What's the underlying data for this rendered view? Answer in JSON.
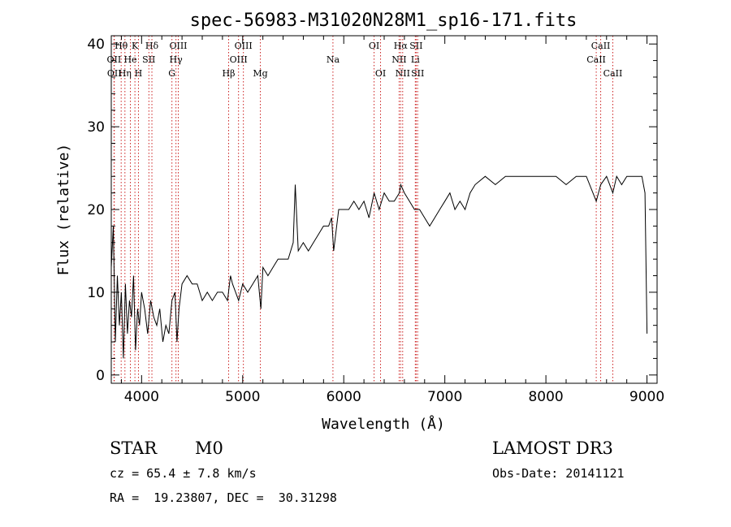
{
  "chart_data": {
    "type": "line",
    "title": "spec-56983-M31020N28M1_sp16-171.fits",
    "xlabel": "Wavelength (Å)",
    "ylabel": "Flux (relative)",
    "xlim": [
      3700,
      9100
    ],
    "ylim": [
      -1,
      41
    ],
    "xticks": [
      4000,
      5000,
      6000,
      7000,
      8000,
      9000
    ],
    "yticks": [
      0,
      10,
      20,
      30,
      40
    ],
    "grid": false,
    "line_color": "#000000",
    "marker_color": "#cc2222",
    "series": [
      {
        "x": [
          3700,
          3720,
          3740,
          3760,
          3780,
          3800,
          3820,
          3840,
          3860,
          3880,
          3900,
          3920,
          3940,
          3960,
          3980,
          4000,
          4030,
          4060,
          4090,
          4120,
          4150,
          4180,
          4210,
          4240,
          4270,
          4300,
          4330,
          4350,
          4370,
          4400,
          4450,
          4500,
          4550,
          4600,
          4650,
          4700,
          4750,
          4800,
          4850,
          4880,
          4900,
          4930,
          4960,
          5000,
          5050,
          5100,
          5150,
          5180,
          5200,
          5250,
          5300,
          5350,
          5400,
          5450,
          5500,
          5520,
          5550,
          5600,
          5650,
          5700,
          5750,
          5800,
          5850,
          5880,
          5900,
          5950,
          6000,
          6050,
          6100,
          6150,
          6200,
          6250,
          6300,
          6350,
          6400,
          6450,
          6500,
          6550,
          6563,
          6600,
          6650,
          6700,
          6750,
          6800,
          6850,
          6900,
          6950,
          7000,
          7050,
          7100,
          7150,
          7200,
          7250,
          7300,
          7400,
          7500,
          7600,
          7700,
          7800,
          7900,
          8000,
          8100,
          8200,
          8300,
          8400,
          8498,
          8542,
          8600,
          8662,
          8700,
          8750,
          8800,
          8850,
          8900,
          8950,
          8980,
          9000
        ],
        "y": [
          13,
          18,
          4,
          12,
          6,
          10,
          2,
          11,
          5,
          9,
          7,
          12,
          3,
          8,
          6,
          10,
          8,
          5,
          9,
          7,
          6,
          8,
          4,
          6,
          5,
          9,
          10,
          4,
          8,
          11,
          12,
          11,
          11,
          9,
          10,
          9,
          10,
          10,
          9,
          12,
          11,
          10,
          9,
          11,
          10,
          11,
          12,
          8,
          13,
          12,
          13,
          14,
          14,
          14,
          16,
          23,
          15,
          16,
          15,
          16,
          17,
          18,
          18,
          19,
          15,
          20,
          20,
          20,
          21,
          20,
          21,
          19,
          22,
          20,
          22,
          21,
          21,
          22,
          23,
          22,
          21,
          20,
          20,
          19,
          18,
          19,
          20,
          21,
          22,
          20,
          21,
          20,
          22,
          23,
          24,
          23,
          24,
          24,
          24,
          24,
          24,
          24,
          23,
          24,
          24,
          21,
          23,
          24,
          22,
          24,
          23,
          24,
          24,
          24,
          24,
          22,
          5
        ]
      }
    ],
    "line_markers": [
      {
        "label": "Hθ",
        "x": 3798,
        "row": 1
      },
      {
        "label": "OII",
        "x": 3727,
        "row": 2
      },
      {
        "label": "OII",
        "x": 3730,
        "row": 3
      },
      {
        "label": "K",
        "x": 3934,
        "row": 1
      },
      {
        "label": "He",
        "x": 3889,
        "row": 2
      },
      {
        "label": "Hη",
        "x": 3835,
        "row": 3
      },
      {
        "label": "H",
        "x": 3969,
        "row": 3
      },
      {
        "label": "Hδ",
        "x": 4102,
        "row": 1
      },
      {
        "label": "SII",
        "x": 4072,
        "row": 2
      },
      {
        "label": "OIII",
        "x": 4363,
        "row": 1
      },
      {
        "label": "Hγ",
        "x": 4340,
        "row": 2
      },
      {
        "label": "G",
        "x": 4300,
        "row": 3
      },
      {
        "label": "OIII",
        "x": 5007,
        "row": 1
      },
      {
        "label": "OIII",
        "x": 4959,
        "row": 2
      },
      {
        "label": "Hβ",
        "x": 4861,
        "row": 3
      },
      {
        "label": "Mg",
        "x": 5175,
        "row": 3
      },
      {
        "label": "Na",
        "x": 5893,
        "row": 2
      },
      {
        "label": "OI",
        "x": 6300,
        "row": 1
      },
      {
        "label": "OI",
        "x": 6364,
        "row": 3
      },
      {
        "label": "Hα",
        "x": 6563,
        "row": 1
      },
      {
        "label": "SII",
        "x": 6716,
        "row": 1
      },
      {
        "label": "NII",
        "x": 6548,
        "row": 2
      },
      {
        "label": "Li",
        "x": 6708,
        "row": 2
      },
      {
        "label": "NII",
        "x": 6583,
        "row": 3
      },
      {
        "label": "SII",
        "x": 6731,
        "row": 3
      },
      {
        "label": "CaII",
        "x": 8542,
        "row": 1
      },
      {
        "label": "CaII",
        "x": 8498,
        "row": 2
      },
      {
        "label": "CaII",
        "x": 8662,
        "row": 3
      }
    ]
  },
  "info": {
    "class": "STAR",
    "subclass": "M0",
    "survey": "LAMOST DR3",
    "cz": "cz = 65.4 ± 7.8 km/s",
    "obs_date": "Obs-Date: 20141121",
    "radec": "RA =  19.23807, DEC =  30.31298"
  }
}
